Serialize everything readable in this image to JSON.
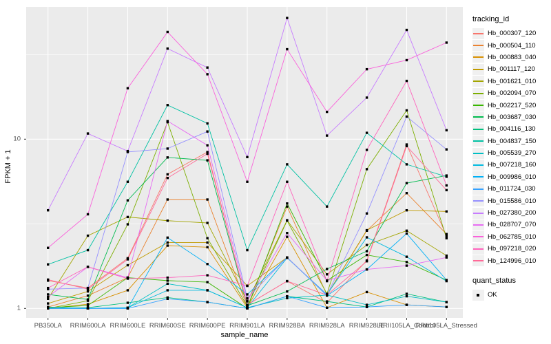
{
  "chart_data": {
    "type": "line",
    "title": "",
    "xlabel": "sample_name",
    "ylabel": "FPKM + 1",
    "yscale": "log10",
    "ylim": [
      0.88,
      61
    ],
    "yticks": [
      1,
      10
    ],
    "yminor": [
      3.162,
      31.62
    ],
    "grid": "on",
    "legend_position": "right",
    "panel_bg": "#ebebeb",
    "grid_color": "#ffffff",
    "point_color": "#000000",
    "categories": [
      "PB350LA",
      "RRIM600LA",
      "RRIM600LE",
      "RRIM600SE",
      "RRIM600PE",
      "RRIM901LA",
      "RRIM928BA",
      "RRIM928LA",
      "RRIM928LE",
      "RRII105LA_Control",
      "RRII105LA_Stressed"
    ],
    "color_legend_title": "tracking_id",
    "shape_legend_title": "quant_status",
    "shape_legend_label": "OK",
    "series": [
      {
        "name": "Hb_000307_120",
        "color": "#F8766D",
        "values": [
          1.46,
          1.32,
          1.98,
          6.2,
          8.4,
          1.05,
          1.45,
          1.08,
          1.92,
          9.3,
          2.68
        ]
      },
      {
        "name": "Hb_000504_110",
        "color": "#EA8331",
        "values": [
          1.02,
          1.19,
          1.52,
          4.4,
          4.4,
          1.02,
          4.0,
          1.2,
          2.88,
          4.8,
          2.75
        ]
      },
      {
        "name": "Hb_000883_040",
        "color": "#D89000",
        "values": [
          1.0,
          1.06,
          1.28,
          2.35,
          2.3,
          1.01,
          2.65,
          1.01,
          1.25,
          1.05,
          1.02
        ]
      },
      {
        "name": "Hb_001117_120",
        "color": "#C09B00",
        "values": [
          1.07,
          1.26,
          1.8,
          2.45,
          2.45,
          1.36,
          2.0,
          1.2,
          2.9,
          3.8,
          3.74
        ]
      },
      {
        "name": "Hb_001621_010",
        "color": "#A3A500",
        "values": [
          1.14,
          2.69,
          3.47,
          3.3,
          3.2,
          1.1,
          3.32,
          1.59,
          2.37,
          2.88,
          2.05
        ]
      },
      {
        "name": "Hb_002094_070",
        "color": "#7CAE00",
        "values": [
          1.0,
          1.11,
          3.14,
          12.6,
          2.6,
          1.03,
          3.3,
          1.22,
          6.65,
          14.8,
          2.6
        ]
      },
      {
        "name": "Hb_002217_520",
        "color": "#39B600",
        "values": [
          1.01,
          1.04,
          1.52,
          1.46,
          1.43,
          1.0,
          4.17,
          1.46,
          2.07,
          1.88,
          1.47
        ]
      },
      {
        "name": "Hb_003687_030",
        "color": "#00BB4E",
        "values": [
          1.21,
          1.13,
          4.35,
          7.8,
          7.5,
          1.04,
          1.26,
          1.71,
          2.18,
          5.5,
          6.1
        ]
      },
      {
        "name": "Hb_004116_130",
        "color": "#00BF7D",
        "values": [
          1.0,
          1.01,
          1.08,
          1.16,
          1.09,
          1.0,
          1.18,
          1.1,
          1.02,
          1.22,
          1.09
        ]
      },
      {
        "name": "Hb_004837_150",
        "color": "#00C1A3",
        "values": [
          1.82,
          2.21,
          5.6,
          15.9,
          12.4,
          2.21,
          7.1,
          4.0,
          10.9,
          7.1,
          6.0
        ]
      },
      {
        "name": "Hb_005539_270",
        "color": "#00BFC4",
        "values": [
          1.0,
          1.0,
          1.01,
          1.4,
          1.28,
          1.01,
          1.15,
          1.2,
          1.05,
          1.18,
          1.09
        ]
      },
      {
        "name": "Hb_007218_160",
        "color": "#00BAE0",
        "values": [
          1.02,
          1.0,
          1.01,
          1.28,
          1.28,
          1.01,
          1.99,
          1.21,
          2.63,
          2.02,
          1.45
        ]
      },
      {
        "name": "Hb_009986_010",
        "color": "#00B0F6",
        "values": [
          1.0,
          1.0,
          1.0,
          2.62,
          1.83,
          1.21,
          2.0,
          1.19,
          1.7,
          2.77,
          1.47
        ]
      },
      {
        "name": "Hb_011724_030",
        "color": "#35A2FF",
        "values": [
          1.0,
          1.0,
          1.0,
          1.14,
          1.09,
          1.0,
          1.18,
          1.01,
          1.02,
          1.05,
          1.02
        ]
      },
      {
        "name": "Hb_015586_010",
        "color": "#9590FF",
        "values": [
          1.3,
          1.32,
          8.4,
          8.8,
          11.1,
          1.15,
          2.0,
          1.2,
          3.64,
          13.6,
          8.7
        ]
      },
      {
        "name": "Hb_027380_200",
        "color": "#C77CFF",
        "values": [
          3.8,
          10.8,
          8.5,
          34.3,
          26.5,
          7.84,
          52.0,
          10.5,
          17.6,
          44.2,
          11.3
        ]
      },
      {
        "name": "Hb_028707_070",
        "color": "#E76BF3",
        "values": [
          1.17,
          1.76,
          1.52,
          12.8,
          9.2,
          1.11,
          2.79,
          1.46,
          1.7,
          1.79,
          2.0
        ]
      },
      {
        "name": "Hb_062785_010",
        "color": "#FA62DB",
        "values": [
          2.28,
          3.6,
          20.0,
          43.0,
          24.2,
          5.6,
          34.0,
          14.5,
          25.9,
          29.3,
          37.2
        ]
      },
      {
        "name": "Hb_097218_020",
        "color": "#FF62BC",
        "values": [
          1.32,
          1.76,
          1.5,
          1.52,
          1.57,
          1.36,
          5.6,
          1.45,
          8.65,
          22.1,
          5.33
        ]
      },
      {
        "name": "Hb_124996_010",
        "color": "#FF6A98",
        "values": [
          1.48,
          1.3,
          1.95,
          5.9,
          8.2,
          1.05,
          1.45,
          1.2,
          1.9,
          9.1,
          5.0
        ]
      }
    ]
  }
}
